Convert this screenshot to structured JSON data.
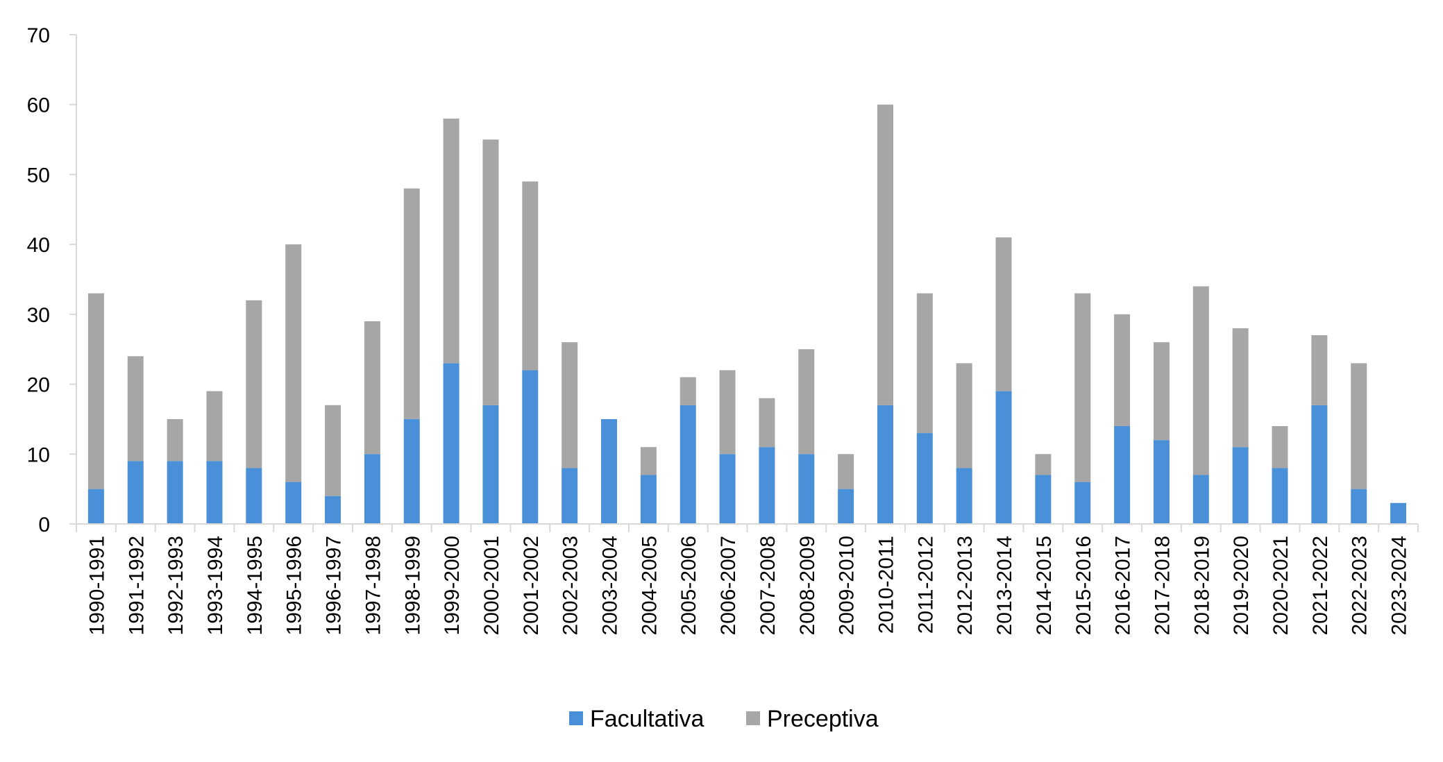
{
  "chart_data": {
    "type": "bar",
    "stacked": true,
    "categories": [
      "1990-1991",
      "1991-1992",
      "1992-1993",
      "1993-1994",
      "1994-1995",
      "1995-1996",
      "1996-1997",
      "1997-1998",
      "1998-1999",
      "1999-2000",
      "2000-2001",
      "2001-2002",
      "2002-2003",
      "2003-2004",
      "2004-2005",
      "2005-2006",
      "2006-2007",
      "2007-2008",
      "2008-2009",
      "2009-2010",
      "2010-2011",
      "2011-2012",
      "2012-2013",
      "2013-2014",
      "2014-2015",
      "2015-2016",
      "2016-2017",
      "2017-2018",
      "2018-2019",
      "2019-2020",
      "2020-2021",
      "2021-2022",
      "2022-2023",
      "2023-2024"
    ],
    "series": [
      {
        "name": "Facultativa",
        "color": "#4a90d9",
        "values": [
          5,
          9,
          9,
          9,
          8,
          6,
          4,
          10,
          15,
          23,
          17,
          22,
          8,
          15,
          7,
          17,
          10,
          11,
          10,
          5,
          17,
          13,
          8,
          19,
          7,
          6,
          14,
          12,
          7,
          11,
          8,
          17,
          5,
          3
        ]
      },
      {
        "name": "Preceptiva",
        "color": "#a6a6a6",
        "values": [
          28,
          15,
          6,
          10,
          24,
          34,
          13,
          19,
          33,
          35,
          38,
          27,
          18,
          0,
          4,
          4,
          12,
          7,
          15,
          5,
          43,
          20,
          15,
          22,
          3,
          27,
          16,
          14,
          27,
          17,
          6,
          10,
          18,
          0
        ]
      }
    ],
    "ylim": [
      0,
      70
    ],
    "yticks": [
      0,
      10,
      20,
      30,
      40,
      50,
      60,
      70
    ],
    "grid": false,
    "legend": "bottom-center"
  }
}
